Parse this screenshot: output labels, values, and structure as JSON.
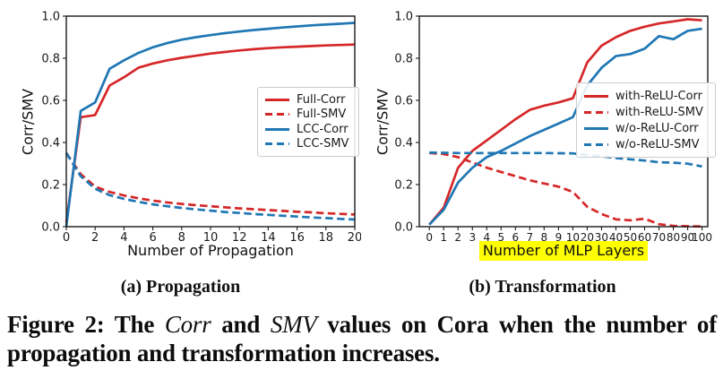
{
  "colors": {
    "red": "#d62728",
    "blue": "#1f77b4",
    "highlight": "#ffff00",
    "spine": "#1a1a1a"
  },
  "captions": {
    "a": "(a) Propagation",
    "b": "(b) Transformation"
  },
  "figure_caption": {
    "parts": [
      {
        "text": "Figure 2: The ",
        "italic": false
      },
      {
        "text": "Corr",
        "italic": true
      },
      {
        "text": " and ",
        "italic": false
      },
      {
        "text": "SMV",
        "italic": true
      },
      {
        "text": " values on Cora when the number of propagation and transformation increases.",
        "italic": false
      }
    ]
  },
  "chart_data": [
    {
      "id": "propagation",
      "type": "line",
      "title": "",
      "xlabel": "Number of Propagation",
      "ylabel": "Corr/SMV",
      "xlim": [
        0,
        20
      ],
      "ylim": [
        0.0,
        1.0
      ],
      "grid": false,
      "legend_position": "upper right",
      "x": [
        0,
        1,
        2,
        3,
        4,
        5,
        6,
        7,
        8,
        9,
        10,
        11,
        12,
        13,
        14,
        15,
        16,
        17,
        18,
        19,
        20
      ],
      "xtick_labels": [
        "0",
        "2",
        "4",
        "6",
        "8",
        "10",
        "12",
        "14",
        "16",
        "18",
        "20"
      ],
      "xtick_values": [
        0,
        2,
        4,
        6,
        8,
        10,
        12,
        14,
        16,
        18,
        20
      ],
      "ytick_labels": [
        "0.0",
        "0.2",
        "0.4",
        "0.6",
        "0.8",
        "1.0"
      ],
      "series": [
        {
          "name": "Full-Corr",
          "color": "#d62728",
          "dash": "solid",
          "values": [
            0.02,
            0.52,
            0.53,
            0.67,
            0.71,
            0.755,
            0.775,
            0.79,
            0.802,
            0.812,
            0.822,
            0.83,
            0.837,
            0.843,
            0.848,
            0.852,
            0.855,
            0.858,
            0.861,
            0.863,
            0.865
          ]
        },
        {
          "name": "Full-SMV",
          "color": "#d62728",
          "dash": "dashed",
          "values": [
            0.35,
            0.25,
            0.19,
            0.165,
            0.148,
            0.135,
            0.124,
            0.115,
            0.108,
            0.102,
            0.097,
            0.092,
            0.087,
            0.083,
            0.079,
            0.075,
            0.071,
            0.068,
            0.064,
            0.061,
            0.058
          ]
        },
        {
          "name": "LCC-Corr",
          "color": "#1f77b4",
          "dash": "solid",
          "values": [
            0.0,
            0.55,
            0.59,
            0.75,
            0.79,
            0.825,
            0.852,
            0.872,
            0.888,
            0.9,
            0.91,
            0.919,
            0.927,
            0.934,
            0.94,
            0.946,
            0.951,
            0.956,
            0.96,
            0.964,
            0.968
          ]
        },
        {
          "name": "LCC-SMV",
          "color": "#1f77b4",
          "dash": "dashed",
          "values": [
            0.35,
            0.24,
            0.18,
            0.15,
            0.132,
            0.118,
            0.106,
            0.097,
            0.089,
            0.082,
            0.076,
            0.07,
            0.065,
            0.06,
            0.056,
            0.052,
            0.048,
            0.044,
            0.041,
            0.037,
            0.034
          ]
        }
      ]
    },
    {
      "id": "transformation",
      "type": "line",
      "title": "",
      "xlabel": "Number of MLP Layers",
      "xlabel_highlighted": true,
      "ylabel": "Corr/SMV",
      "ylim": [
        0.0,
        1.0
      ],
      "grid": false,
      "legend_position": "center right",
      "categories": [
        "0",
        "1",
        "2",
        "3",
        "4",
        "5",
        "6",
        "7",
        "8",
        "9",
        "10",
        "20",
        "30",
        "40",
        "50",
        "60",
        "70",
        "80",
        "90",
        "100"
      ],
      "ytick_labels": [
        "0.0",
        "0.2",
        "0.4",
        "0.6",
        "0.8",
        "1.0"
      ],
      "series": [
        {
          "name": "with-ReLU-Corr",
          "color": "#d62728",
          "dash": "solid",
          "values": [
            0.01,
            0.09,
            0.28,
            0.36,
            0.41,
            0.46,
            0.51,
            0.555,
            0.575,
            0.59,
            0.61,
            0.78,
            0.86,
            0.9,
            0.93,
            0.95,
            0.965,
            0.975,
            0.985,
            0.98
          ]
        },
        {
          "name": "with-ReLU-SMV",
          "color": "#d62728",
          "dash": "dashed",
          "values": [
            0.35,
            0.345,
            0.33,
            0.305,
            0.28,
            0.26,
            0.24,
            0.22,
            0.205,
            0.19,
            0.165,
            0.095,
            0.06,
            0.035,
            0.03,
            0.038,
            0.012,
            0.004,
            0.002,
            0.001
          ]
        },
        {
          "name": "w/o-ReLU-Corr",
          "color": "#1f77b4",
          "dash": "solid",
          "values": [
            0.01,
            0.08,
            0.21,
            0.28,
            0.33,
            0.36,
            0.395,
            0.43,
            0.46,
            0.49,
            0.52,
            0.67,
            0.755,
            0.81,
            0.82,
            0.845,
            0.905,
            0.89,
            0.93,
            0.94
          ]
        },
        {
          "name": "w/o-ReLU-SMV",
          "color": "#1f77b4",
          "dash": "dashed",
          "values": [
            0.352,
            0.351,
            0.35,
            0.35,
            0.35,
            0.35,
            0.35,
            0.35,
            0.35,
            0.349,
            0.348,
            0.34,
            0.334,
            0.326,
            0.32,
            0.314,
            0.306,
            0.304,
            0.299,
            0.286
          ]
        }
      ]
    }
  ]
}
